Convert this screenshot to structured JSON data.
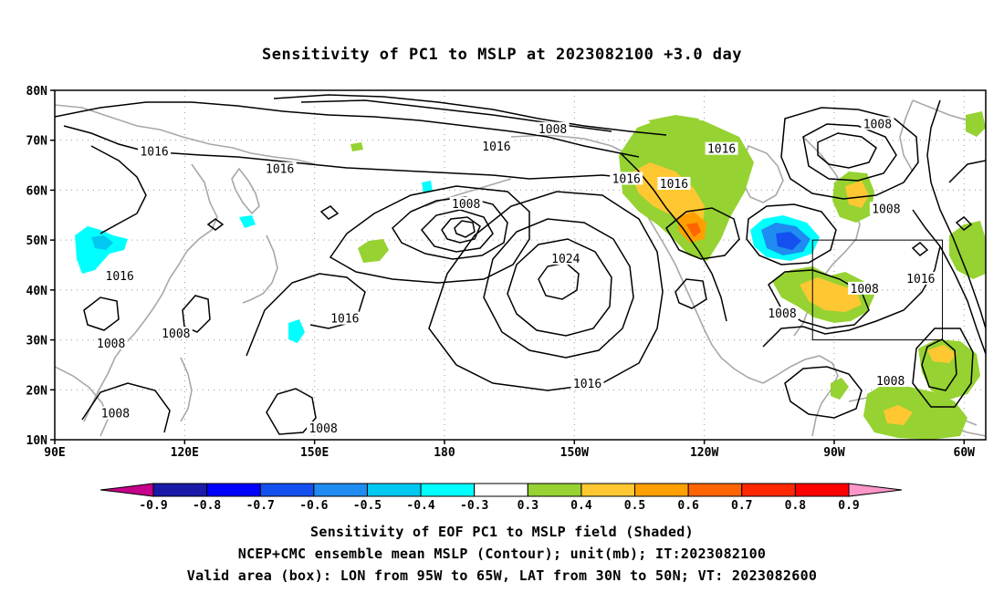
{
  "title": "Sensitivity of PC1 to MSLP at 2023082100 +3.0 day",
  "map": {
    "projection": "lat-lon",
    "lon_range": [
      "90E",
      "55W"
    ],
    "lat_range": [
      "10N",
      "80N"
    ],
    "lat_ticks": [
      "80N",
      "70N",
      "60N",
      "50N",
      "40N",
      "30N",
      "20N",
      "10N"
    ],
    "lon_ticks": [
      "90E",
      "120E",
      "150E",
      "180",
      "150W",
      "120W",
      "90W",
      "60W"
    ],
    "grid": "dotted",
    "coastline_color": "#a8a8a8",
    "contour_color": "#000000",
    "contour_labels": [
      {
        "text": "1016",
        "lon": 113,
        "lat": 67.5
      },
      {
        "text": "1016",
        "lon": 142,
        "lat": 64
      },
      {
        "text": "1008",
        "lon": 205,
        "lat": 72
      },
      {
        "text": "1016",
        "lon": 192,
        "lat": 68.5
      },
      {
        "text": "1016",
        "lon": 222,
        "lat": 62
      },
      {
        "text": "1016",
        "lon": 244,
        "lat": 68
      },
      {
        "text": "1016",
        "lon": 233,
        "lat": 61
      },
      {
        "text": "1008",
        "lon": 280,
        "lat": 73
      },
      {
        "text": "1008",
        "lon": 185,
        "lat": 57
      },
      {
        "text": "1024",
        "lon": 208,
        "lat": 46
      },
      {
        "text": "1008",
        "lon": 282,
        "lat": 56
      },
      {
        "text": "1016",
        "lon": 105,
        "lat": 42.5
      },
      {
        "text": "1008",
        "lon": 277,
        "lat": 40
      },
      {
        "text": "1016",
        "lon": 290,
        "lat": 42
      },
      {
        "text": "1016",
        "lon": 157,
        "lat": 34
      },
      {
        "text": "1008",
        "lon": 258,
        "lat": 35
      },
      {
        "text": "1008",
        "lon": 103,
        "lat": 29
      },
      {
        "text": "1008",
        "lon": 118,
        "lat": 31
      },
      {
        "text": "1016",
        "lon": 213,
        "lat": 21
      },
      {
        "text": "1008",
        "lon": 283,
        "lat": 21.5
      },
      {
        "text": "1008",
        "lon": 104,
        "lat": 15
      },
      {
        "text": "1008",
        "lon": 152,
        "lat": 12
      }
    ],
    "valid_box": {
      "lon_from": "95W",
      "lon_to": "65W",
      "lat_from": "30N",
      "lat_to": "50N"
    }
  },
  "colorbar": {
    "labels": [
      "-0.9",
      "-0.8",
      "-0.7",
      "-0.6",
      "-0.5",
      "-0.4",
      "-0.3",
      "0.3",
      "0.4",
      "0.5",
      "0.6",
      "0.7",
      "0.8",
      "0.9"
    ],
    "colors": [
      "#c6008b",
      "#1a1aa8",
      "#0000ff",
      "#1450f0",
      "#1e8cf0",
      "#00c8f0",
      "#00ffff",
      "#ffffff",
      "#96d232",
      "#ffc832",
      "#ffa000",
      "#ff6400",
      "#ff2800",
      "#ff0000",
      "#ff96c8"
    ]
  },
  "captions": [
    "Sensitivity of EOF PC1 to MSLP field (Shaded)",
    "NCEP+CMC ensemble mean MSLP (Contour); unit(mb); IT:2023082100",
    "Valid area (box): LON from 95W to 65W, LAT from 30N to 50N; VT: 2023082600"
  ]
}
